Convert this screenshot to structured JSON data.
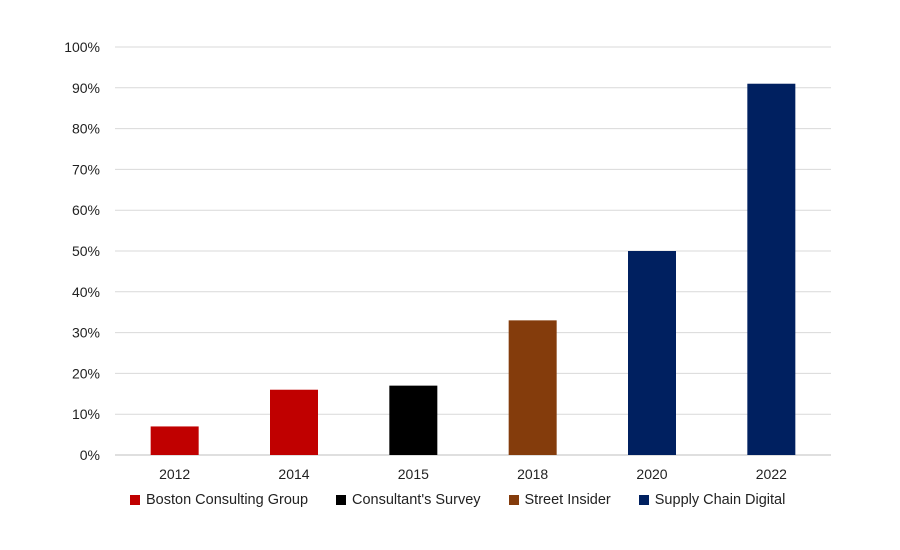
{
  "chart_data": {
    "type": "bar",
    "title": "",
    "xlabel": "",
    "ylabel": "",
    "categories": [
      "2012",
      "2014",
      "2015",
      "2018",
      "2020",
      "2022"
    ],
    "values": [
      7,
      16,
      17,
      33,
      50,
      91
    ],
    "sources": [
      "Boston Consulting Group",
      "Boston Consulting Group",
      "Consultant's Survey",
      "Street Insider",
      "Supply Chain Digital",
      "Supply Chain Digital"
    ],
    "ylim": [
      0,
      100
    ],
    "yticks": [
      0,
      10,
      20,
      30,
      40,
      50,
      60,
      70,
      80,
      90,
      100
    ],
    "ytick_labels": [
      "0%",
      "10%",
      "20%",
      "30%",
      "40%",
      "50%",
      "60%",
      "70%",
      "80%",
      "90%",
      "100%"
    ],
    "grid": true,
    "legend_position": "bottom",
    "legend": [
      {
        "name": "Boston Consulting Group",
        "color": "#c00000"
      },
      {
        "name": "Consultant's Survey",
        "color": "#000000"
      },
      {
        "name": "Street Insider",
        "color": "#843c0c"
      },
      {
        "name": "Supply Chain Digital",
        "color": "#002060"
      }
    ]
  }
}
